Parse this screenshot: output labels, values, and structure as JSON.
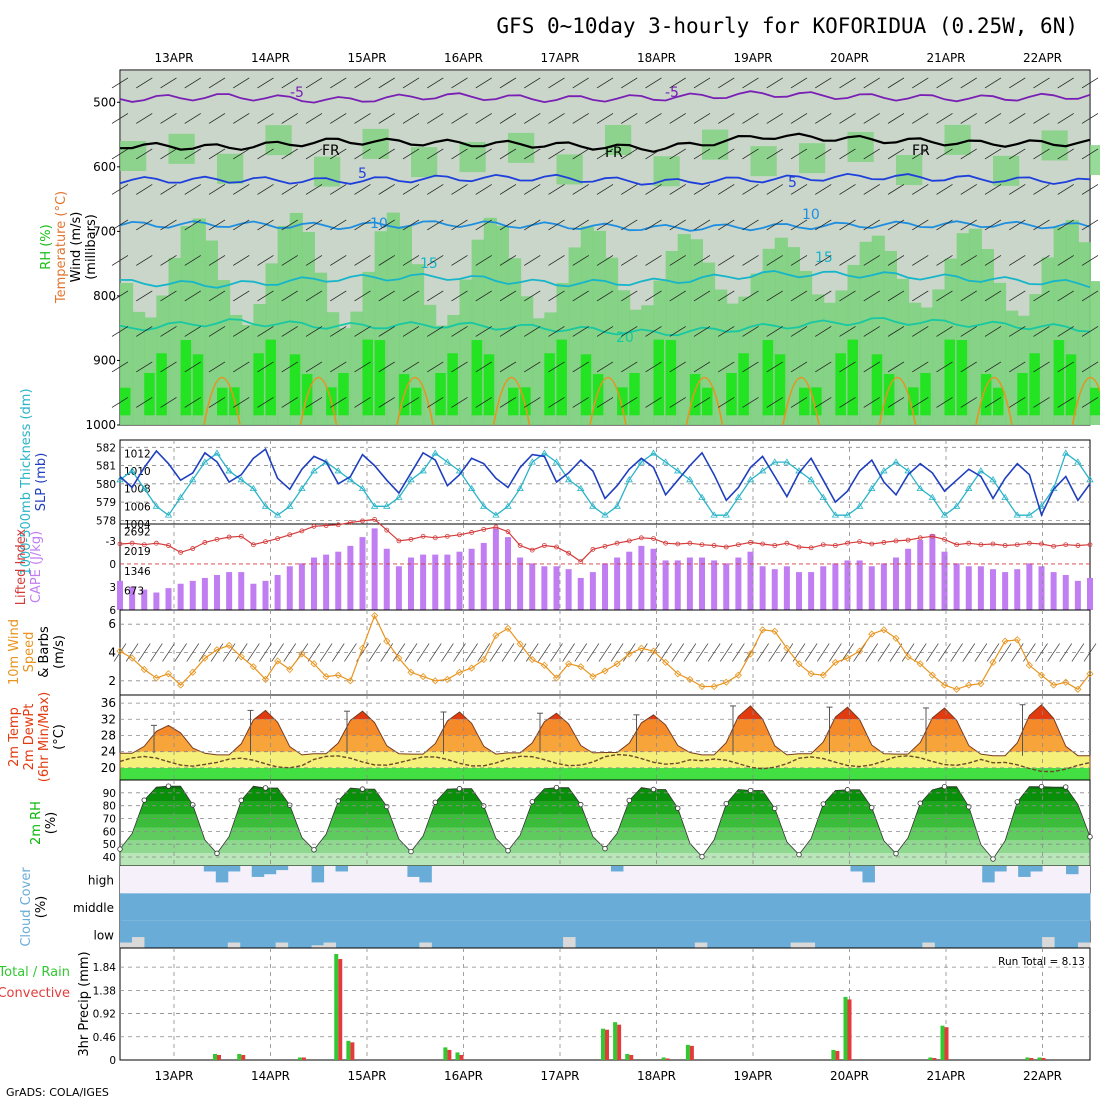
{
  "title": "GFS 0~10day 3-hourly for KOFORIDUA (0.25W, 6N)",
  "dates": [
    "13APR",
    "14APR",
    "15APR",
    "16APR",
    "17APR",
    "18APR",
    "19APR",
    "20APR",
    "21APR",
    "22APR"
  ],
  "footer": "GrADS: COLA/IGES",
  "run_total": "Run Total = 8.13",
  "colors": {
    "rh_light": "#c9d6c9",
    "rh_mid": "#7ed27e",
    "rh_dark": "#23e323",
    "thick": "#1f3fbf",
    "slp": "#2ab4c8",
    "cape": "#c07ef2",
    "li": "#d43b3b",
    "wind": "#e8941e",
    "t_hot": "#e23b10",
    "t_warm": "#f7a53a",
    "t_mild": "#f5f07a",
    "t_cool": "#43e043",
    "rh_surface": "#0bb80b",
    "cloud": "#6aacd8",
    "cloud_low": "#d9d9d9",
    "precip_total": "#32c832",
    "precip_conv": "#e33b3b"
  },
  "chart_data": [
    {
      "panel": "upper-air",
      "type": "heatmap",
      "ylabel": [
        "RH (%)",
        "Temperature (°C)",
        "Wind (m/s)",
        "(millibars)"
      ],
      "yticks": [
        "500",
        "600",
        "700",
        "800",
        "900",
        "1000"
      ],
      "ylim": [
        1000,
        450
      ],
      "contours": [
        {
          "label": "-5",
          "color": "#7a1fb5",
          "level_hpa": [
            495,
            491,
            497,
            490,
            495,
            493,
            487,
            492,
            494,
            490
          ]
        },
        {
          "label": "FR",
          "color": "#000000",
          "level_hpa": [
            567,
            570,
            560,
            563,
            566,
            572,
            552,
            558,
            564,
            563
          ]
        },
        {
          "label": "5",
          "color": "#1f3fdc",
          "level_hpa": [
            621,
            620,
            622,
            618,
            617,
            624,
            619,
            615,
            619,
            623
          ]
        },
        {
          "label": "10",
          "color": "#1e8ee0",
          "level_hpa": [
            690,
            689,
            692,
            688,
            691,
            695,
            693,
            690,
            689,
            692
          ]
        },
        {
          "label": "15",
          "color": "#16b5c9",
          "level_hpa": [
            779,
            783,
            773,
            770,
            781,
            778,
            766,
            767,
            774,
            782
          ]
        },
        {
          "label": "20",
          "color": "#17c8a2",
          "level_hpa": [
            851,
            840,
            847,
            845,
            850,
            858,
            848,
            838,
            844,
            851
          ]
        }
      ],
      "text_labels": [
        "-5",
        "-5",
        "FR",
        "FR",
        "FR",
        "5",
        "5",
        "10",
        "10",
        "15",
        "15",
        "20"
      ]
    },
    {
      "panel": "thickness-slp",
      "type": "line",
      "ylabel_left": "1000-500mb Thickness (dm)",
      "ylabel_right": "SLP (mb)",
      "yticks_left": [
        "578",
        "579",
        "580",
        "581",
        "582"
      ],
      "yticks_right": [
        "1004",
        "1006",
        "1008",
        "1010",
        "1012"
      ],
      "series": [
        {
          "axis": "left",
          "values": [
            580.4,
            579.8,
            580.9,
            581.8,
            581.1,
            580.2,
            580.6,
            581.7,
            581.2,
            580.1,
            580.5,
            581.4,
            581.9,
            580.3,
            579.7,
            580.8,
            581.5,
            581.2,
            580.0,
            580.4,
            581.6,
            581.0,
            580.2,
            579.5,
            580.6,
            581.7,
            581.3,
            579.9,
            580.5,
            581.4,
            581.1,
            580.3,
            579.8,
            580.9,
            581.6,
            581.5,
            580.1,
            580.6,
            581.3,
            580.7,
            579.2,
            579.9,
            580.8,
            581.4,
            580.9,
            579.4,
            580.2,
            581.0,
            581.7,
            580.5,
            579.1,
            579.8,
            580.9,
            581.5,
            580.4,
            579.3,
            580.6,
            581.4,
            580.2,
            579.0,
            579.6,
            580.7,
            581.3,
            580.1,
            579.4,
            580.5,
            581.1,
            580.6,
            579.6,
            580.2,
            580.8,
            580.4,
            579.2,
            580.3,
            581.1,
            580.5,
            578.3,
            579.7,
            580.4,
            579.1,
            580.0
          ]
        },
        {
          "axis": "right",
          "values": [
            1009,
            1010,
            1008,
            1006,
            1005,
            1007,
            1009,
            1011,
            1012,
            1010,
            1009,
            1008,
            1006,
            1005,
            1006,
            1008,
            1010,
            1011,
            1010,
            1009,
            1008,
            1006,
            1006,
            1007,
            1009,
            1010,
            1012,
            1011,
            1010,
            1008,
            1006,
            1005,
            1006,
            1008,
            1011,
            1012,
            1011,
            1009,
            1008,
            1006,
            1005,
            1006,
            1009,
            1011,
            1012,
            1011,
            1010,
            1009,
            1007,
            1005,
            1005,
            1007,
            1009,
            1010,
            1011,
            1011,
            1010,
            1009,
            1007,
            1005,
            1005,
            1006,
            1008,
            1010,
            1011,
            1010,
            1008,
            1007,
            1005,
            1006,
            1008,
            1010,
            1009,
            1007,
            1005,
            1005,
            1006,
            1008,
            1012,
            1011,
            1009
          ]
        }
      ]
    },
    {
      "panel": "cape-li",
      "type": "bar",
      "ylabel_left": "Lifted Index",
      "ylabel_right": "CAPE (J/kg)",
      "yticks_left": [
        "-3",
        "0",
        "3",
        "6"
      ],
      "yticks_right": [
        "673",
        "1346",
        "2019",
        "2692"
      ],
      "cape_values": [
        1000,
        800,
        700,
        600,
        750,
        900,
        1000,
        1100,
        1200,
        1300,
        1300,
        900,
        1000,
        1200,
        1500,
        1600,
        1800,
        1900,
        2000,
        2200,
        2500,
        2800,
        2100,
        1500,
        1800,
        1900,
        1900,
        1900,
        2000,
        2100,
        2300,
        2800,
        2500,
        1800,
        1600,
        1500,
        1500,
        1400,
        1100,
        1300,
        1600,
        1800,
        2000,
        2200,
        2100,
        1700,
        1700,
        1800,
        1800,
        1700,
        1600,
        1800,
        2000,
        1500,
        1400,
        1500,
        1300,
        1300,
        1500,
        1600,
        1700,
        1700,
        1500,
        1600,
        1800,
        2100,
        2400,
        2600,
        2000,
        1600,
        1500,
        1500,
        1400,
        1300,
        1400,
        1600,
        1500,
        1300,
        1200,
        1000,
        1100
      ],
      "li_values": [
        -2.6,
        -2.7,
        -2.5,
        -2.7,
        -2.4,
        -1.5,
        -2.0,
        -2.8,
        -3.2,
        -3.5,
        -3.6,
        -2.5,
        -2.9,
        -3.3,
        -3.8,
        -4.3,
        -4.9,
        -5.0,
        -5.1,
        -5.4,
        -5.6,
        -5.8,
        -4.4,
        -3.0,
        -3.2,
        -3.6,
        -3.4,
        -3.6,
        -3.8,
        -4.1,
        -4.5,
        -4.8,
        -4.2,
        -2.4,
        -1.8,
        -2.4,
        -2.2,
        -1.4,
        -0.3,
        -1.9,
        -2.3,
        -2.7,
        -3.0,
        -3.4,
        -3.3,
        -2.7,
        -2.6,
        -2.7,
        -2.5,
        -2.4,
        -2.2,
        -2.5,
        -2.8,
        -2.6,
        -2.4,
        -2.7,
        -2.2,
        -2.1,
        -2.5,
        -2.4,
        -2.7,
        -2.9,
        -2.6,
        -2.8,
        -3.0,
        -3.1,
        -3.4,
        -3.6,
        -3.2,
        -2.5,
        -2.7,
        -2.5,
        -2.6,
        -2.4,
        -2.5,
        -2.7,
        -2.6,
        -2.3,
        -2.5,
        -2.4,
        -2.5
      ]
    },
    {
      "panel": "10m-wind",
      "type": "line",
      "ylabel": [
        "10m Wind",
        "Speed",
        "& Barbs",
        "(m/s)"
      ],
      "yticks": [
        "2",
        "4",
        "6"
      ],
      "ylim": [
        1,
        7
      ],
      "values": [
        4.1,
        3.6,
        2.8,
        2.2,
        2.5,
        1.7,
        2.6,
        3.6,
        4.2,
        4.5,
        3.7,
        3.0,
        2.1,
        3.4,
        2.8,
        3.9,
        3.2,
        2.3,
        2.4,
        2.0,
        4.3,
        6.6,
        4.8,
        3.6,
        2.6,
        2.3,
        2.0,
        2.1,
        2.6,
        2.9,
        3.5,
        5.2,
        5.7,
        4.6,
        3.5,
        3.1,
        2.2,
        3.2,
        3.0,
        2.3,
        2.7,
        3.2,
        3.9,
        4.3,
        4.1,
        3.3,
        2.5,
        2.1,
        1.6,
        1.6,
        1.9,
        2.4,
        3.9,
        5.6,
        5.5,
        4.3,
        3.2,
        2.5,
        2.4,
        3.3,
        3.6,
        4.1,
        5.3,
        5.6,
        5.0,
        3.7,
        3.2,
        2.4,
        1.7,
        1.4,
        1.7,
        1.8,
        3.3,
        4.8,
        4.9,
        3.1,
        2.4,
        1.7,
        1.9,
        1.4,
        2.5
      ]
    },
    {
      "panel": "2m-temp",
      "type": "area",
      "ylabel": [
        "2m Temp",
        "2m DewPt",
        "(6hr Min/Max)",
        "(°C)"
      ],
      "yticks": [
        "20",
        "24",
        "28",
        "32",
        "36"
      ],
      "ylim": [
        17,
        38
      ],
      "temp_max": [
        30.5,
        34.2,
        34.0,
        33.8,
        33.5,
        33.1,
        35.3,
        35.0,
        34.8,
        35.6
      ],
      "temp_min": [
        23.6,
        23.2,
        23.5,
        23.4,
        23.7,
        23.8,
        23.2,
        23.5,
        23.4,
        23.0
      ],
      "dewpoint": [
        21.6,
        21.2,
        21.8,
        21.6,
        21.7,
        22.1,
        21.0,
        21.5,
        21.8,
        20.2
      ]
    },
    {
      "panel": "2m-rh",
      "type": "area",
      "ylabel": [
        "2m RH",
        "(%)"
      ],
      "yticks": [
        "40",
        "50",
        "60",
        "70",
        "80",
        "90"
      ],
      "ylim": [
        33,
        100
      ],
      "rh_max": [
        94.5,
        95.2,
        93.8,
        92.9,
        93.2,
        94.1,
        92.6,
        91.8,
        92.4,
        94.8
      ],
      "rh_min": [
        46.1,
        42.8,
        45.6,
        44.2,
        44.9,
        46.5,
        40.2,
        41.8,
        42.6,
        38.4
      ]
    },
    {
      "panel": "cloud-cover",
      "type": "bar",
      "ylabel": [
        "Cloud Cover",
        "(%)"
      ],
      "categories": [
        "high",
        "middle",
        "low"
      ],
      "high_pct": [
        0,
        0,
        0,
        0,
        0,
        0,
        0,
        20,
        60,
        20,
        0,
        40,
        30,
        15,
        0,
        0,
        60,
        0,
        20,
        0,
        0,
        0,
        0,
        0,
        40,
        60,
        0,
        0,
        0,
        0,
        0,
        0,
        0,
        0,
        0,
        0,
        0,
        0,
        0,
        0,
        0,
        20,
        0,
        0,
        0,
        0,
        0,
        0,
        0,
        0,
        0,
        0,
        0,
        0,
        0,
        0,
        0,
        0,
        0,
        0,
        0,
        20,
        60,
        0,
        0,
        0,
        0,
        0,
        0,
        0,
        0,
        0,
        60,
        20,
        0,
        40,
        20,
        0,
        0,
        30,
        0
      ],
      "mid_pct": [
        100,
        100,
        100,
        100,
        100,
        100,
        100,
        100,
        100,
        100,
        100,
        100,
        100,
        100,
        100,
        100,
        100,
        100,
        100,
        100,
        100,
        100,
        100,
        100,
        100,
        100,
        100,
        100,
        100,
        100,
        100,
        100,
        100,
        100,
        100,
        100,
        100,
        100,
        100,
        100,
        100,
        100,
        100,
        100,
        100,
        100,
        100,
        100,
        100,
        100,
        100,
        100,
        100,
        100,
        100,
        100,
        100,
        100,
        100,
        100,
        100,
        100,
        100,
        100,
        100,
        100,
        100,
        100,
        100,
        100,
        100,
        100,
        100,
        100,
        100,
        100,
        100,
        100,
        100,
        100,
        100
      ],
      "low_pct": [
        20,
        40,
        0,
        0,
        0,
        0,
        0,
        0,
        0,
        20,
        0,
        0,
        0,
        20,
        0,
        0,
        10,
        20,
        0,
        0,
        0,
        0,
        0,
        0,
        0,
        20,
        0,
        0,
        0,
        0,
        0,
        0,
        0,
        0,
        0,
        0,
        0,
        40,
        0,
        0,
        0,
        0,
        0,
        0,
        0,
        0,
        0,
        0,
        20,
        0,
        0,
        0,
        0,
        0,
        0,
        0,
        20,
        20,
        0,
        0,
        0,
        0,
        0,
        0,
        0,
        0,
        0,
        20,
        0,
        0,
        0,
        0,
        0,
        0,
        0,
        0,
        0,
        40,
        0,
        0,
        20
      ]
    },
    {
      "panel": "precip",
      "type": "bar",
      "ylabel": [
        "3hr Precip (mm)"
      ],
      "legend": [
        "Total / Rain",
        "Convective"
      ],
      "yticks": [
        "0",
        "0.46",
        "0.92",
        "1.38",
        "1.84"
      ],
      "ylim": [
        0,
        2.1
      ],
      "total_values": [
        0,
        0,
        0,
        0,
        0,
        0,
        0,
        0,
        0.12,
        0,
        0.12,
        0,
        0,
        0,
        0,
        0.05,
        0,
        0,
        2.1,
        0.38,
        0,
        0,
        0,
        0,
        0,
        0,
        0,
        0.25,
        0.15,
        0,
        0,
        0,
        0,
        0,
        0,
        0,
        0,
        0,
        0,
        0,
        0.62,
        0.75,
        0.12,
        0,
        0,
        0.05,
        0,
        0.3,
        0,
        0,
        0,
        0,
        0,
        0,
        0,
        0,
        0,
        0,
        0,
        0.2,
        1.25,
        0,
        0,
        0,
        0,
        0,
        0,
        0.05,
        0.68,
        0,
        0,
        0,
        0,
        0,
        0,
        0.05,
        0.05,
        0,
        0,
        0,
        0
      ],
      "conv_values": [
        0,
        0,
        0,
        0,
        0,
        0,
        0,
        0,
        0.1,
        0,
        0.1,
        0,
        0,
        0,
        0,
        0.05,
        0,
        0,
        2.0,
        0.35,
        0,
        0,
        0,
        0,
        0,
        0,
        0,
        0.2,
        0.1,
        0,
        0,
        0,
        0,
        0,
        0,
        0,
        0,
        0,
        0,
        0,
        0.6,
        0.7,
        0.1,
        0,
        0,
        0.03,
        0,
        0.28,
        0,
        0,
        0,
        0,
        0,
        0,
        0,
        0,
        0,
        0,
        0,
        0.18,
        1.2,
        0,
        0,
        0,
        0,
        0,
        0,
        0.04,
        0.65,
        0,
        0,
        0,
        0,
        0,
        0,
        0.04,
        0.04,
        0,
        0,
        0,
        0
      ]
    }
  ]
}
